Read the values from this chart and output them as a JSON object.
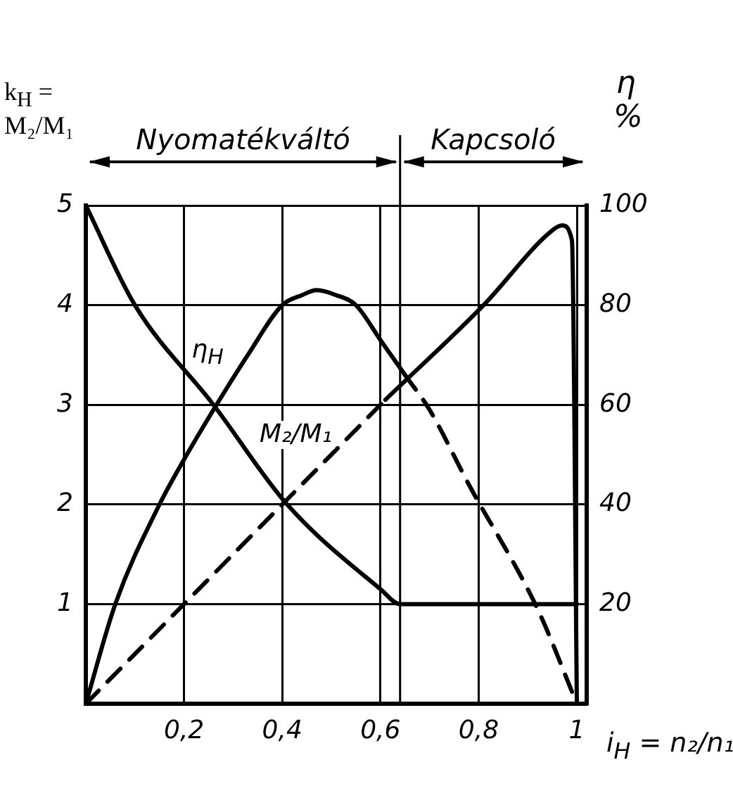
{
  "chart_data": {
    "type": "line",
    "xlabel": "i$_{H}$ = n₂/n₁",
    "ylabel": "k$_{H}$ = M₂/M₁",
    "y2label": "η %",
    "xlim": [
      0,
      1.02
    ],
    "xticks": [
      {
        "value": 0.2,
        "label": "0,2"
      },
      {
        "value": 0.4,
        "label": "0,4"
      },
      {
        "value": 0.6,
        "label": "0,6"
      },
      {
        "value": 0.8,
        "label": "0,8"
      },
      1
    ],
    "ylim": [
      0,
      5
    ],
    "yticks": [
      1,
      2,
      3,
      4,
      5
    ],
    "y2lim": [
      0,
      100
    ],
    "y2ticks": [
      20,
      40,
      60,
      80,
      100
    ],
    "grid": true,
    "marker": "none",
    "series": [
      {
        "name": "M₂/M₁",
        "color": "#000000",
        "line_style": "solid",
        "x": [
          0,
          0.1,
          0.26,
          0.41,
          0.6,
          0.64,
          1
        ],
        "values": [
          5,
          4,
          3,
          2,
          1.15,
          1,
          1
        ]
      },
      {
        "name": "η$_{H}$",
        "color": "#000000",
        "line_style": "solid",
        "axis": "y2",
        "x": [
          0,
          0.06,
          0.15,
          0.2,
          0.26,
          0.33,
          0.4,
          0.44,
          0.47,
          0.51,
          0.55,
          0.6,
          0.65
        ],
        "values": [
          0,
          20,
          40,
          49,
          59,
          70,
          80,
          82,
          83,
          82,
          80,
          73,
          66
        ]
      },
      {
        "color": "#000000",
        "line_style": "dashed",
        "axis": "y2",
        "x": [
          0.65,
          0.7,
          0.78,
          0.92,
          1
        ],
        "values": [
          66,
          59,
          44,
          19,
          0
        ]
      },
      {
        "color": "#000000",
        "line_style": "dashed",
        "axis": "y2",
        "x": [
          0,
          0.61
        ],
        "values": [
          0,
          61
        ]
      },
      {
        "color": "#000000",
        "line_style": "solid",
        "axis": "y2",
        "x": [
          0.61,
          0.81,
          0.95,
          0.97,
          0.99,
          1
        ],
        "values": [
          61,
          80,
          95,
          96,
          93,
          0
        ]
      }
    ],
    "ref_lines": [
      {
        "axis": "x",
        "value": 0.64
      }
    ],
    "annotations": [
      "Nyomatékváltó",
      "Kapcsoló"
    ]
  }
}
